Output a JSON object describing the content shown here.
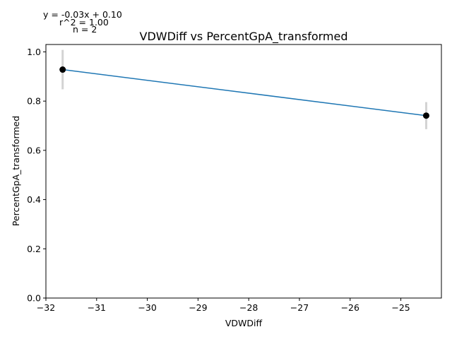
{
  "chart_data": {
    "type": "scatter",
    "title": "VDWDiff vs PercentGpA_transformed",
    "xlabel": "VDWDiff",
    "ylabel": "PercentGpA_transformed",
    "xlim": [
      -32.0,
      -24.2
    ],
    "ylim": [
      0.0,
      1.03
    ],
    "xticks": [
      -32,
      -31,
      -30,
      -29,
      -28,
      -27,
      -26,
      -25
    ],
    "yticks": [
      0.0,
      0.2,
      0.4,
      0.6,
      0.8,
      1.0
    ],
    "grid": false,
    "points": [
      {
        "x": -31.67,
        "y": 0.928,
        "err_low": 0.848,
        "err_high": 1.008
      },
      {
        "x": -24.5,
        "y": 0.741,
        "err_low": 0.686,
        "err_high": 0.796
      }
    ],
    "fit_line": {
      "x_start": -31.67,
      "y_start": 0.928,
      "x_end": -24.5,
      "y_end": 0.741
    },
    "annotations": [
      "y = -0.03x + 0.10",
      "r^2 = 1.00",
      "n = 2"
    ],
    "colors": {
      "line": "#1f77b4",
      "point": "#000000",
      "errorbar": "#d3d3d3",
      "axis": "#000000"
    }
  }
}
